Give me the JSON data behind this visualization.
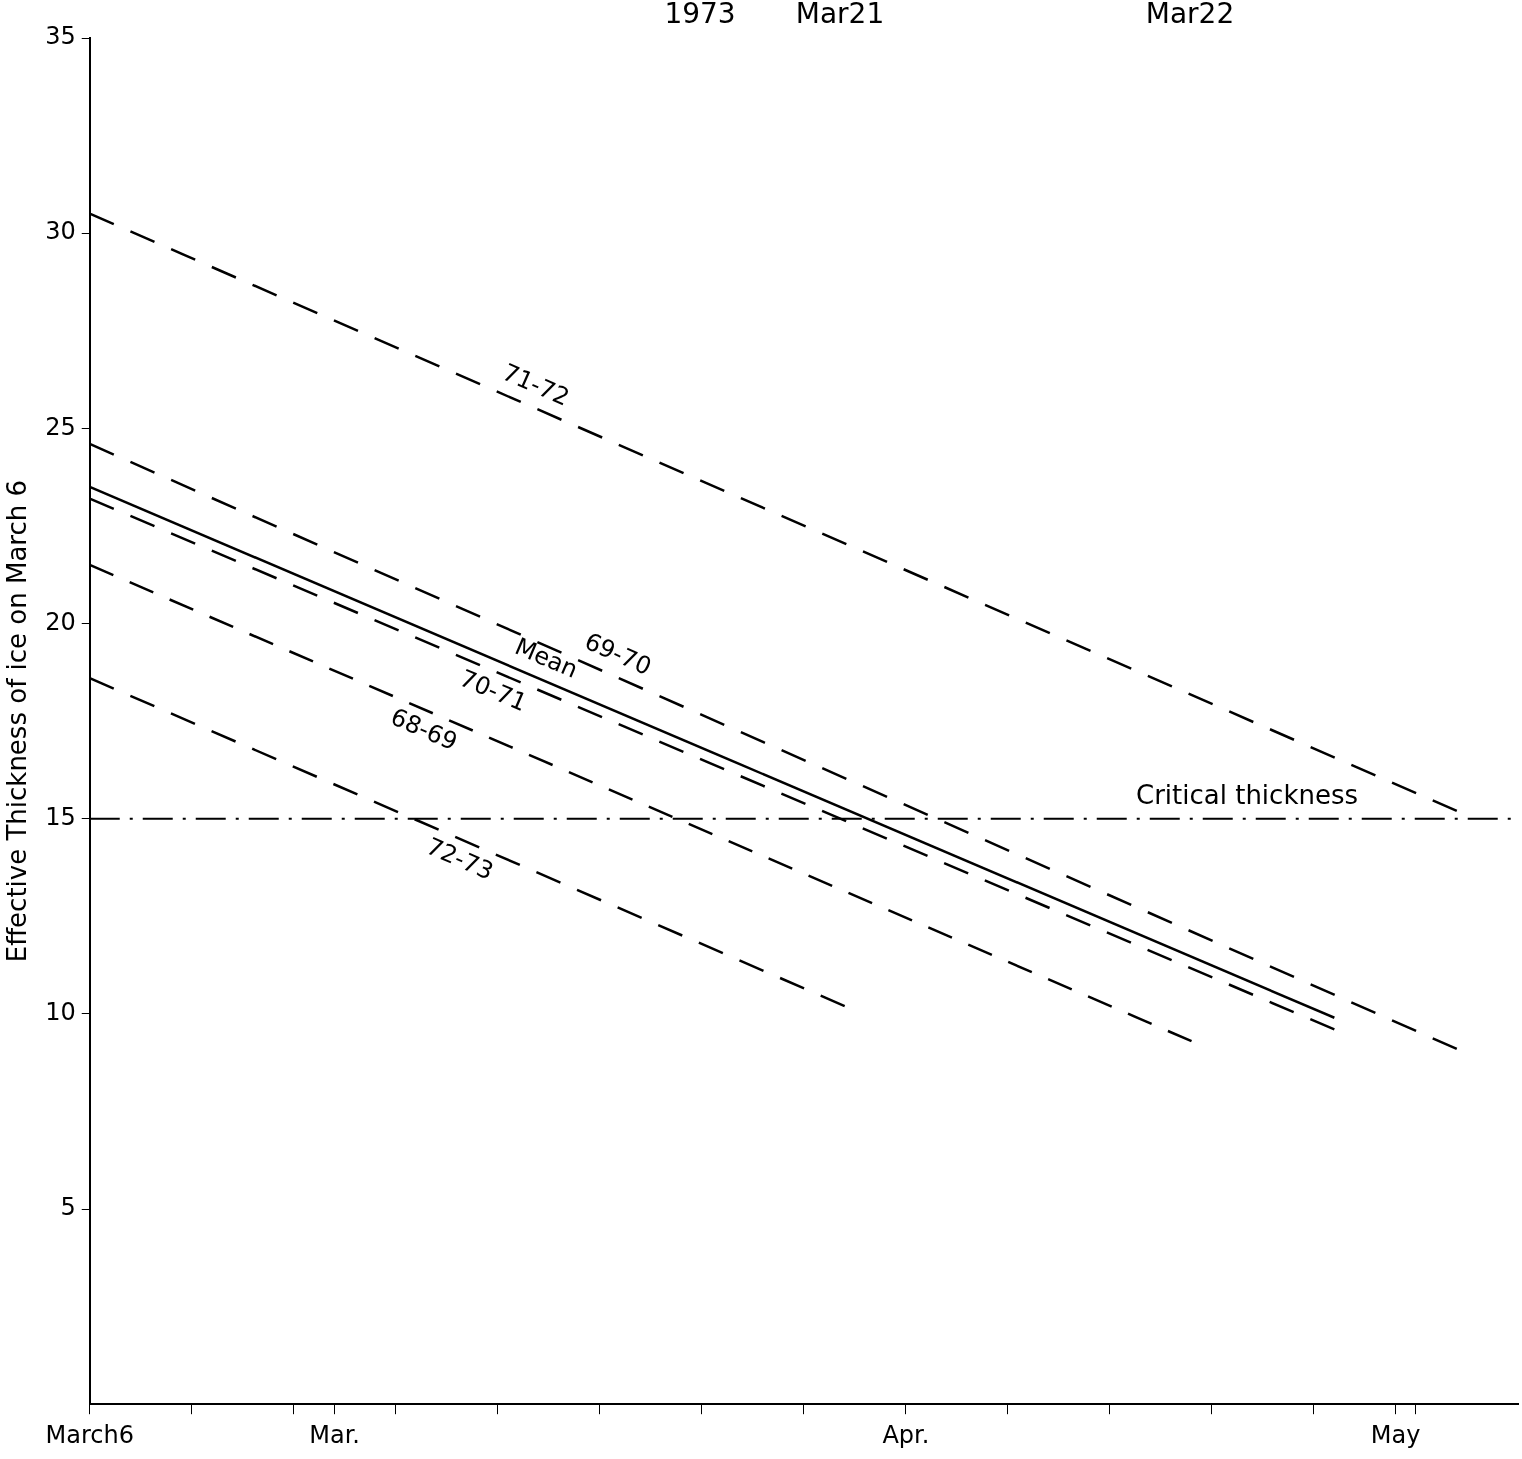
{
  "chart_data": {
    "type": "line",
    "ylabel": "Effective Thickness of ice on March 6",
    "annotations": [
      {
        "text": "1973"
      },
      {
        "text": "Mar21"
      },
      {
        "text": "Mar22"
      }
    ],
    "xlim": [
      "--03-06",
      "--05-15"
    ],
    "xticks": [
      {
        "value": "--03-06",
        "label": "March6"
      },
      {
        "value": "--03-11",
        "label": null
      },
      {
        "value": "--03-16",
        "label": null
      },
      {
        "value": "--03-18",
        "label": "Mar."
      },
      {
        "value": "--03-21",
        "label": null
      },
      {
        "value": "--03-26",
        "label": null
      },
      {
        "value": "--03-31",
        "label": null
      },
      {
        "value": "--04-05",
        "label": null
      },
      {
        "value": "--04-10",
        "label": null
      },
      {
        "value": "--04-15",
        "label": "Apr."
      },
      {
        "value": "--04-20",
        "label": null
      },
      {
        "value": "--04-25",
        "label": null
      },
      {
        "value": "--04-30",
        "label": null
      },
      {
        "value": "--05-05",
        "label": null
      },
      {
        "value": "--05-09",
        "label": "May"
      },
      {
        "value": "--05-10",
        "label": null
      }
    ],
    "ylim": [
      0,
      35
    ],
    "yticks": [
      5,
      10,
      15,
      20,
      25,
      30,
      35
    ],
    "grid": false,
    "legend": false,
    "marker": "none",
    "series": [
      {
        "name": "71-72",
        "color": "#000000",
        "line_style": "dashed",
        "x": [
          "--03-06",
          "--05-12"
        ],
        "values": [
          30.5,
          15.2
        ]
      },
      {
        "name": "69-70",
        "color": "#000000",
        "line_style": "dashed",
        "x": [
          "--03-06",
          "--05-12"
        ],
        "values": [
          24.6,
          9.1
        ]
      },
      {
        "name": "Mean",
        "color": "#000000",
        "line_style": "solid",
        "x": [
          "--03-06",
          "--05-06"
        ],
        "values": [
          23.5,
          9.9
        ]
      },
      {
        "name": "70-71",
        "color": "#000000",
        "line_style": "dashed",
        "x": [
          "--03-06",
          "--05-06"
        ],
        "values": [
          23.2,
          9.6
        ]
      },
      {
        "name": "68-69",
        "color": "#000000",
        "line_style": "dashed",
        "x": [
          "--03-06",
          "--04-29"
        ],
        "values": [
          21.5,
          9.3
        ]
      },
      {
        "name": "72-73",
        "color": "#000000",
        "line_style": "dashed",
        "x": [
          "--03-06",
          "--04-12"
        ],
        "values": [
          18.6,
          10.2
        ]
      }
    ],
    "ref_lines": [
      {
        "axis": "y",
        "value": 15,
        "label": "Critical thickness",
        "line_style": "dashdot",
        "color": "#000000"
      }
    ]
  }
}
